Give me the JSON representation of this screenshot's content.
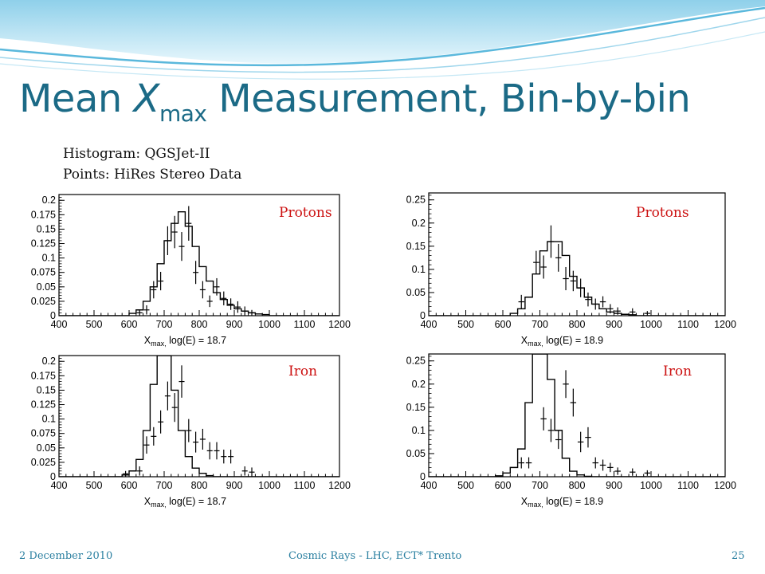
{
  "slide": {
    "title_pre": "Mean ",
    "title_x": "X",
    "title_sub": "max",
    "title_post": " Measurement, Bin-by-bin",
    "note_histogram": "Histogram: QGSJet-II",
    "note_points": "Points: HiRes Stereo Data",
    "footer_date": "2 December 2010",
    "footer_center": "Cosmic Rays - LHC, ECT* Trento",
    "footer_page": "25"
  },
  "colors": {
    "title": "#1b6a86",
    "footer": "#2a7fa0",
    "panel_label": "#cc1111",
    "plot": "#000000"
  },
  "chart_data": [
    {
      "type": "histogram+points",
      "label": "Protons",
      "xlabel": "X_max, log(E) = 18.7",
      "xlim": [
        400,
        1200
      ],
      "ylim": [
        0,
        0.21
      ],
      "x_ticks": [
        "400",
        "500",
        "600",
        "700",
        "800",
        "900",
        "1000",
        "1100",
        "1200"
      ],
      "y_ticks": [
        "0",
        "0.025",
        "0.05",
        "0.075",
        "0.1",
        "0.125",
        "0.15",
        "0.175",
        "0.2"
      ],
      "y_tick_values": [
        0,
        0.025,
        0.05,
        0.075,
        0.1,
        0.125,
        0.15,
        0.175,
        0.2
      ],
      "hist": {
        "bin_start": 600,
        "bin_width": 20,
        "values": [
          0.004,
          0.01,
          0.025,
          0.05,
          0.09,
          0.13,
          0.16,
          0.18,
          0.155,
          0.12,
          0.085,
          0.06,
          0.04,
          0.028,
          0.018,
          0.012,
          0.008,
          0.005,
          0.003,
          0.002
        ]
      },
      "points": [
        {
          "x": 630,
          "y": 0.005,
          "err": 0.005
        },
        {
          "x": 650,
          "y": 0.01,
          "err": 0.008
        },
        {
          "x": 670,
          "y": 0.045,
          "err": 0.015
        },
        {
          "x": 690,
          "y": 0.06,
          "err": 0.016
        },
        {
          "x": 710,
          "y": 0.13,
          "err": 0.025
        },
        {
          "x": 730,
          "y": 0.145,
          "err": 0.028
        },
        {
          "x": 750,
          "y": 0.12,
          "err": 0.025
        },
        {
          "x": 770,
          "y": 0.16,
          "err": 0.03
        },
        {
          "x": 790,
          "y": 0.075,
          "err": 0.02
        },
        {
          "x": 810,
          "y": 0.045,
          "err": 0.015
        },
        {
          "x": 830,
          "y": 0.025,
          "err": 0.01
        },
        {
          "x": 850,
          "y": 0.05,
          "err": 0.015
        },
        {
          "x": 870,
          "y": 0.03,
          "err": 0.012
        },
        {
          "x": 890,
          "y": 0.02,
          "err": 0.01
        },
        {
          "x": 910,
          "y": 0.015,
          "err": 0.01
        },
        {
          "x": 930,
          "y": 0.008,
          "err": 0.008
        },
        {
          "x": 950,
          "y": 0.005,
          "err": 0.005
        }
      ]
    },
    {
      "type": "histogram+points",
      "label": "Protons",
      "xlabel": "X_max, log(E) = 18.9",
      "xlim": [
        400,
        1200
      ],
      "ylim": [
        0,
        0.265
      ],
      "x_ticks": [
        "400",
        "500",
        "600",
        "700",
        "800",
        "900",
        "1000",
        "1100",
        "1200"
      ],
      "y_ticks": [
        "0",
        "0.05",
        "0.1",
        "0.15",
        "0.2",
        "0.25"
      ],
      "y_tick_values": [
        0,
        0.05,
        0.1,
        0.15,
        0.2,
        0.25
      ],
      "hist": {
        "bin_start": 620,
        "bin_width": 20,
        "values": [
          0.005,
          0.015,
          0.04,
          0.09,
          0.14,
          0.16,
          0.16,
          0.13,
          0.085,
          0.06,
          0.04,
          0.025,
          0.015,
          0.008,
          0.005,
          0.003,
          0.002
        ]
      },
      "points": [
        {
          "x": 650,
          "y": 0.03,
          "err": 0.015
        },
        {
          "x": 690,
          "y": 0.115,
          "err": 0.025
        },
        {
          "x": 710,
          "y": 0.105,
          "err": 0.025
        },
        {
          "x": 730,
          "y": 0.16,
          "err": 0.035
        },
        {
          "x": 750,
          "y": 0.125,
          "err": 0.03
        },
        {
          "x": 770,
          "y": 0.08,
          "err": 0.025
        },
        {
          "x": 790,
          "y": 0.075,
          "err": 0.022
        },
        {
          "x": 810,
          "y": 0.06,
          "err": 0.02
        },
        {
          "x": 830,
          "y": 0.035,
          "err": 0.015
        },
        {
          "x": 850,
          "y": 0.025,
          "err": 0.012
        },
        {
          "x": 870,
          "y": 0.03,
          "err": 0.012
        },
        {
          "x": 890,
          "y": 0.015,
          "err": 0.01
        },
        {
          "x": 910,
          "y": 0.01,
          "err": 0.008
        },
        {
          "x": 950,
          "y": 0.008,
          "err": 0.008
        },
        {
          "x": 990,
          "y": 0.005,
          "err": 0.005
        }
      ]
    },
    {
      "type": "histogram+points",
      "label": "Iron",
      "xlabel": "X_max, log(E) = 18.7",
      "xlim": [
        400,
        1200
      ],
      "ylim": [
        0,
        0.21
      ],
      "x_ticks": [
        "400",
        "500",
        "600",
        "700",
        "800",
        "900",
        "1000",
        "1100",
        "1200"
      ],
      "y_ticks": [
        "0",
        "0.025",
        "0.05",
        "0.075",
        "0.1",
        "0.125",
        "0.15",
        "0.175",
        "0.2"
      ],
      "y_tick_values": [
        0,
        0.025,
        0.05,
        0.075,
        0.1,
        0.125,
        0.15,
        0.175,
        0.2
      ],
      "hist": {
        "bin_start": 580,
        "bin_width": 20,
        "values": [
          0.003,
          0.01,
          0.03,
          0.08,
          0.16,
          0.225,
          0.22,
          0.15,
          0.08,
          0.035,
          0.015,
          0.006,
          0.002
        ]
      },
      "points": [
        {
          "x": 590,
          "y": 0.005,
          "err": 0.005
        },
        {
          "x": 630,
          "y": 0.01,
          "err": 0.008
        },
        {
          "x": 650,
          "y": 0.055,
          "err": 0.015
        },
        {
          "x": 670,
          "y": 0.07,
          "err": 0.016
        },
        {
          "x": 690,
          "y": 0.095,
          "err": 0.02
        },
        {
          "x": 710,
          "y": 0.14,
          "err": 0.025
        },
        {
          "x": 730,
          "y": 0.12,
          "err": 0.025
        },
        {
          "x": 750,
          "y": 0.165,
          "err": 0.028
        },
        {
          "x": 770,
          "y": 0.08,
          "err": 0.02
        },
        {
          "x": 790,
          "y": 0.06,
          "err": 0.018
        },
        {
          "x": 810,
          "y": 0.065,
          "err": 0.018
        },
        {
          "x": 830,
          "y": 0.045,
          "err": 0.015
        },
        {
          "x": 850,
          "y": 0.045,
          "err": 0.015
        },
        {
          "x": 870,
          "y": 0.035,
          "err": 0.012
        },
        {
          "x": 890,
          "y": 0.035,
          "err": 0.012
        },
        {
          "x": 930,
          "y": 0.01,
          "err": 0.008
        },
        {
          "x": 950,
          "y": 0.008,
          "err": 0.008
        }
      ]
    },
    {
      "type": "histogram+points",
      "label": "Iron",
      "xlabel": "X_max, log(E) = 18.9",
      "xlim": [
        400,
        1200
      ],
      "ylim": [
        0,
        0.265
      ],
      "x_ticks": [
        "400",
        "500",
        "600",
        "700",
        "800",
        "900",
        "1000",
        "1100",
        "1200"
      ],
      "y_ticks": [
        "0",
        "0.05",
        "0.1",
        "0.15",
        "0.2",
        "0.25"
      ],
      "y_tick_values": [
        0,
        0.05,
        0.1,
        0.15,
        0.2,
        0.25
      ],
      "hist": {
        "bin_start": 580,
        "bin_width": 20,
        "values": [
          0.002,
          0.008,
          0.02,
          0.06,
          0.16,
          0.27,
          0.27,
          0.21,
          0.1,
          0.04,
          0.012,
          0.004,
          0.001
        ]
      },
      "points": [
        {
          "x": 650,
          "y": 0.03,
          "err": 0.012
        },
        {
          "x": 670,
          "y": 0.03,
          "err": 0.012
        },
        {
          "x": 710,
          "y": 0.125,
          "err": 0.025
        },
        {
          "x": 730,
          "y": 0.1,
          "err": 0.025
        },
        {
          "x": 750,
          "y": 0.08,
          "err": 0.02
        },
        {
          "x": 770,
          "y": 0.2,
          "err": 0.03
        },
        {
          "x": 790,
          "y": 0.16,
          "err": 0.03
        },
        {
          "x": 810,
          "y": 0.075,
          "err": 0.022
        },
        {
          "x": 830,
          "y": 0.085,
          "err": 0.022
        },
        {
          "x": 850,
          "y": 0.03,
          "err": 0.012
        },
        {
          "x": 870,
          "y": 0.025,
          "err": 0.012
        },
        {
          "x": 890,
          "y": 0.02,
          "err": 0.01
        },
        {
          "x": 910,
          "y": 0.012,
          "err": 0.008
        },
        {
          "x": 950,
          "y": 0.01,
          "err": 0.008
        },
        {
          "x": 990,
          "y": 0.008,
          "err": 0.006
        }
      ]
    }
  ]
}
